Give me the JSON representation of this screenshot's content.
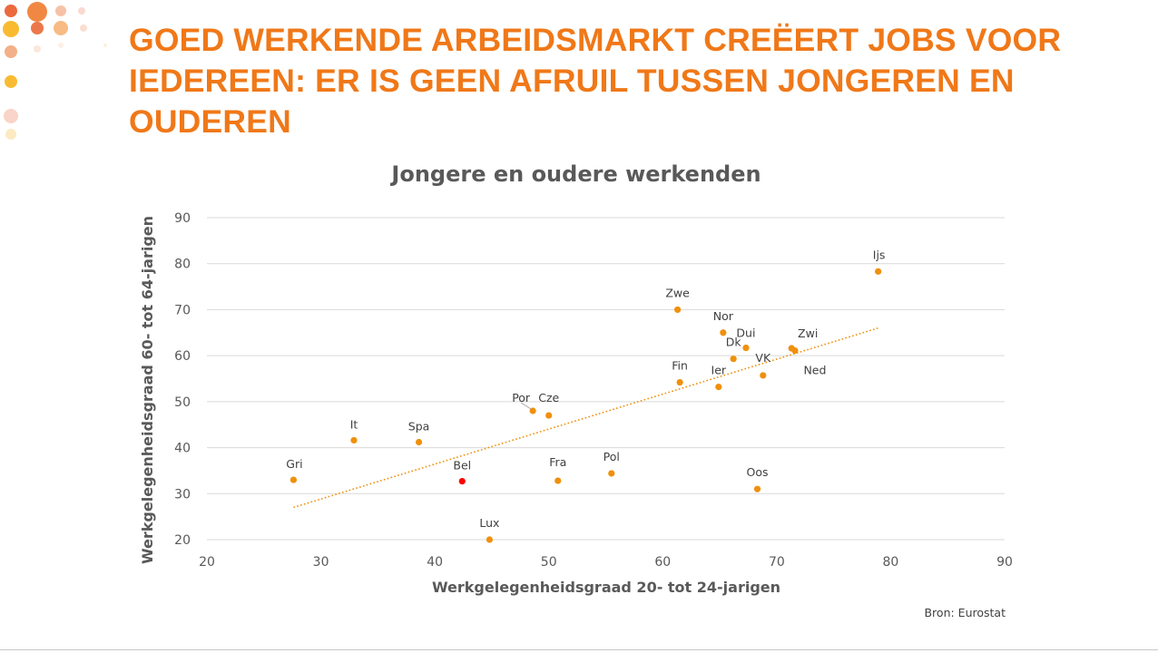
{
  "slide": {
    "title": "GOED WERKENDE ARBEIDSMARKT CREËERT JOBS VOOR IEDEREEN: ER IS GEEN AFRUIL TUSSEN JONGEREN EN OUDEREN",
    "source": "Bron: Eurostat"
  },
  "colors": {
    "title": "#f07818",
    "point": "#f0900c",
    "highlight": "#ff0000",
    "trend": "#f0900c",
    "grid": "#d9d9d9"
  },
  "chart_data": {
    "type": "scatter",
    "title": "Jongere en oudere werkenden",
    "xlabel": "Werkgelegenheidsgraad 20- tot 24-jarigen",
    "ylabel": "Werkgelegenheidsgraad 60- tot 64-jarigen",
    "xlim": [
      20,
      90
    ],
    "ylim": [
      20,
      90
    ],
    "xticks": [
      20,
      30,
      40,
      50,
      60,
      70,
      80,
      90
    ],
    "yticks": [
      20,
      30,
      40,
      50,
      60,
      70,
      80,
      90
    ],
    "grid": "horizontal",
    "points": [
      {
        "label": "Gri",
        "x": 27.6,
        "y": 33.0
      },
      {
        "label": "It",
        "x": 32.9,
        "y": 41.6
      },
      {
        "label": "Spa",
        "x": 38.6,
        "y": 41.2
      },
      {
        "label": "Bel",
        "x": 42.4,
        "y": 32.7,
        "highlight": true
      },
      {
        "label": "Lux",
        "x": 44.8,
        "y": 20.0
      },
      {
        "label": "Por",
        "x": 48.6,
        "y": 48.0
      },
      {
        "label": "Cze",
        "x": 50.0,
        "y": 47.0
      },
      {
        "label": "Fra",
        "x": 50.8,
        "y": 32.8
      },
      {
        "label": "Pol",
        "x": 55.5,
        "y": 34.4
      },
      {
        "label": "Zwe",
        "x": 61.3,
        "y": 70.0
      },
      {
        "label": "Fin",
        "x": 61.5,
        "y": 54.2
      },
      {
        "label": "Ier",
        "x": 64.9,
        "y": 53.2
      },
      {
        "label": "Nor",
        "x": 65.3,
        "y": 65.0
      },
      {
        "label": "Dk",
        "x": 66.2,
        "y": 59.3
      },
      {
        "label": "Dui",
        "x": 67.3,
        "y": 61.7
      },
      {
        "label": "Oos",
        "x": 68.3,
        "y": 31.0
      },
      {
        "label": "VK",
        "x": 68.8,
        "y": 55.7
      },
      {
        "label": "Zwi",
        "x": 71.3,
        "y": 61.6
      },
      {
        "label": "Ned",
        "x": 71.6,
        "y": 61.1
      },
      {
        "label": "Ijs",
        "x": 78.9,
        "y": 78.3
      }
    ],
    "trendline": {
      "x1": 27.6,
      "y1": 27.0,
      "x2": 78.9,
      "y2": 66.0
    }
  }
}
